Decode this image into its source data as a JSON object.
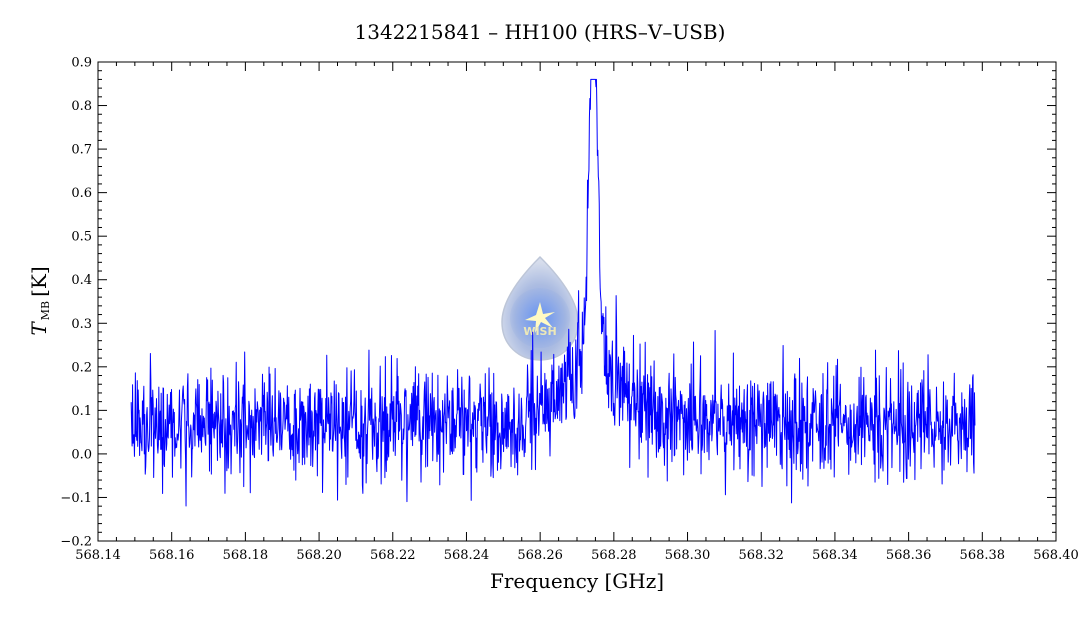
{
  "chart_data": {
    "type": "line",
    "title": "1342215841 – HH100 (HRS–V–USB)",
    "xlabel": "Frequency [GHz]",
    "ylabel_main": "T",
    "ylabel_sub": "MB",
    "ylabel_unit": "[K]",
    "xlim": [
      568.14,
      568.4
    ],
    "ylim": [
      -0.2,
      0.9
    ],
    "x_ticks": [
      "568.14",
      "568.16",
      "568.18",
      "568.20",
      "568.22",
      "568.24",
      "568.26",
      "568.28",
      "568.30",
      "568.32",
      "568.34",
      "568.36",
      "568.38",
      "568.40"
    ],
    "y_ticks": [
      "−0.2",
      "−0.1",
      "0.0",
      "0.1",
      "0.2",
      "0.3",
      "0.4",
      "0.5",
      "0.6",
      "0.7",
      "0.8",
      "0.9"
    ],
    "grid": false,
    "series": [
      {
        "color": "#0000ff",
        "x_start": 568.149,
        "x_end": 568.378,
        "baseline": 0.07,
        "noise_rms": 0.06,
        "line_center": 568.2745,
        "line_peak": 0.85,
        "line_fwhm_ghz": 0.005,
        "broad_wing_amp": 0.15
      }
    ]
  },
  "watermark": {
    "text": "WISH",
    "color": "#8fa8d8"
  }
}
